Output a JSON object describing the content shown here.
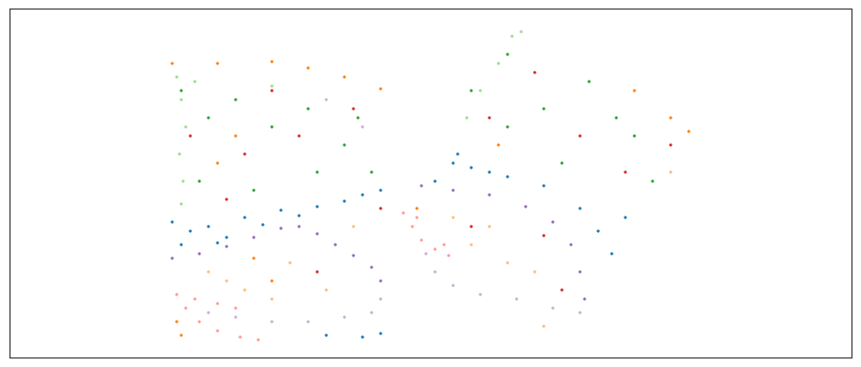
{
  "chart_data": {
    "type": "scatter",
    "xlim": [
      11,
      940
    ],
    "ylim": [
      395,
      10
    ],
    "series": [
      {
        "color": "#1f77b4",
        "x": [
          190,
          210,
          230,
          250,
          270,
          290,
          310,
          330,
          350,
          380,
          400,
          420,
          200,
          240,
          360,
          400,
          420,
          500,
          520,
          540,
          560,
          600,
          640,
          660,
          675,
          690,
          480,
          505
        ],
        "values": [
          245,
          255,
          250,
          262,
          240,
          248,
          232,
          238,
          228,
          222,
          215,
          210,
          270,
          268,
          370,
          372,
          368,
          180,
          185,
          190,
          195,
          205,
          230,
          255,
          280,
          240,
          200,
          170
        ]
      },
      {
        "color": "#ff7f0e",
        "x": [
          190,
          240,
          300,
          340,
          380,
          420,
          195,
          200,
          260,
          240,
          550,
          740,
          760,
          460,
          700,
          300,
          280
        ],
        "values": [
          70,
          70,
          68,
          75,
          85,
          98,
          355,
          370,
          150,
          180,
          160,
          130,
          145,
          230,
          100,
          310,
          285
        ]
      },
      {
        "color": "#2ca02c",
        "x": [
          200,
          230,
          260,
          300,
          340,
          380,
          410,
          220,
          280,
          350,
          395,
          520,
          560,
          600,
          650,
          700,
          620,
          560,
          720,
          680
        ],
        "values": [
          100,
          130,
          110,
          140,
          120,
          160,
          190,
          200,
          210,
          190,
          130,
          100,
          60,
          120,
          90,
          150,
          180,
          140,
          200,
          130
        ]
      },
      {
        "color": "#d62728",
        "x": [
          210,
          270,
          330,
          390,
          420,
          250,
          300,
          540,
          590,
          640,
          690,
          740,
          600,
          520,
          350,
          620
        ],
        "values": [
          150,
          170,
          150,
          120,
          230,
          220,
          100,
          130,
          80,
          150,
          190,
          160,
          260,
          250,
          300,
          320
        ]
      },
      {
        "color": "#9467bd",
        "x": [
          190,
          220,
          250,
          280,
          310,
          330,
          350,
          370,
          390,
          410,
          420,
          465,
          500,
          540,
          580,
          610,
          630,
          640,
          645
        ],
        "values": [
          285,
          280,
          272,
          262,
          252,
          250,
          258,
          270,
          282,
          295,
          310,
          205,
          210,
          215,
          228,
          245,
          270,
          300,
          330
        ]
      },
      {
        "color": "#c5b0d5",
        "x": [
          420,
          410,
          380,
          340,
          300,
          260,
          230,
          400,
          360,
          640,
          610,
          570,
          530,
          500,
          480,
          470
        ],
        "values": [
          330,
          345,
          350,
          355,
          355,
          350,
          345,
          140,
          110,
          345,
          340,
          330,
          325,
          315,
          300,
          280
        ]
      },
      {
        "color": "#98df8a",
        "x": [
          195,
          200,
          205,
          198,
          202,
          200,
          215,
          300,
          515,
          530,
          550,
          565,
          575
        ],
        "values": [
          85,
          110,
          140,
          170,
          200,
          225,
          90,
          95,
          130,
          100,
          70,
          40,
          35
        ]
      },
      {
        "color": "#ffbb78",
        "x": [
          230,
          270,
          320,
          360,
          300,
          250,
          390,
          520,
          560,
          590,
          500,
          540,
          740,
          600
        ],
        "values": [
          300,
          320,
          290,
          320,
          330,
          310,
          250,
          270,
          290,
          300,
          240,
          250,
          190,
          360
        ]
      },
      {
        "color": "#ff9896",
        "x": [
          195,
          215,
          240,
          260,
          205,
          220,
          240,
          265,
          285,
          445,
          455,
          465,
          480,
          495,
          460,
          490
        ],
        "values": [
          325,
          330,
          335,
          340,
          340,
          355,
          365,
          372,
          375,
          235,
          250,
          265,
          275,
          282,
          240,
          270
        ]
      }
    ]
  }
}
